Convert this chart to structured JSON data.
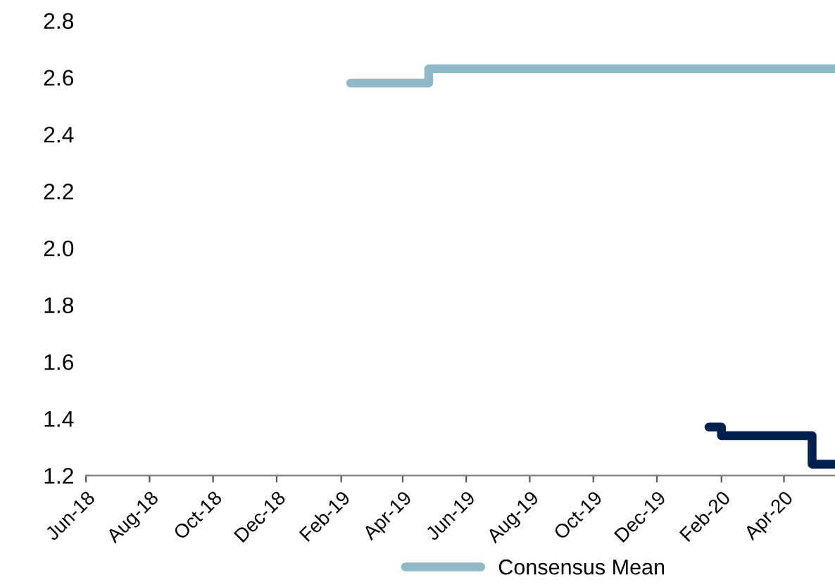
{
  "chart_data": {
    "type": "step",
    "series": [
      {
        "color": "#002050",
        "x": [
          "2020-01-20",
          "2020-02-01",
          "2020-04-28",
          "2020-05-20"
        ],
        "values": [
          1.37,
          1.34,
          1.24,
          1.24
        ]
      },
      {
        "name": "Consensus Mean",
        "color": "#8fb9c8",
        "x": [
          "2019-02-10",
          "2019-04-26",
          "2020-05-20"
        ],
        "values": [
          2.58,
          2.63,
          2.63
        ]
      }
    ],
    "xlim": [
      "2018-06-01",
      "2020-05-20"
    ],
    "xticks": [
      {
        "value": "2018-06-01",
        "label": "Jun-18"
      },
      {
        "value": "2018-08-01",
        "label": "Aug-18"
      },
      {
        "value": "2018-10-01",
        "label": "Oct-18"
      },
      {
        "value": "2018-12-01",
        "label": "Dec-18"
      },
      {
        "value": "2019-02-01",
        "label": "Feb-19"
      },
      {
        "value": "2019-04-01",
        "label": "Apr-19"
      },
      {
        "value": "2019-06-01",
        "label": "Jun-19"
      },
      {
        "value": "2019-08-01",
        "label": "Aug-19"
      },
      {
        "value": "2019-10-01",
        "label": "Oct-19"
      },
      {
        "value": "2019-12-01",
        "label": "Dec-19"
      },
      {
        "value": "2020-02-01",
        "label": "Feb-20"
      },
      {
        "value": "2020-04-01",
        "label": "Apr-20"
      }
    ],
    "ylim": [
      1.2,
      2.8
    ],
    "yticks": [
      1.2,
      1.4,
      1.6,
      1.8,
      {
        "value": 2,
        "label": "2.0"
      },
      2.2,
      2.4,
      2.6,
      2.8
    ],
    "grid": false,
    "legend": "bottom",
    "line_style": "solid",
    "marker": "none"
  }
}
